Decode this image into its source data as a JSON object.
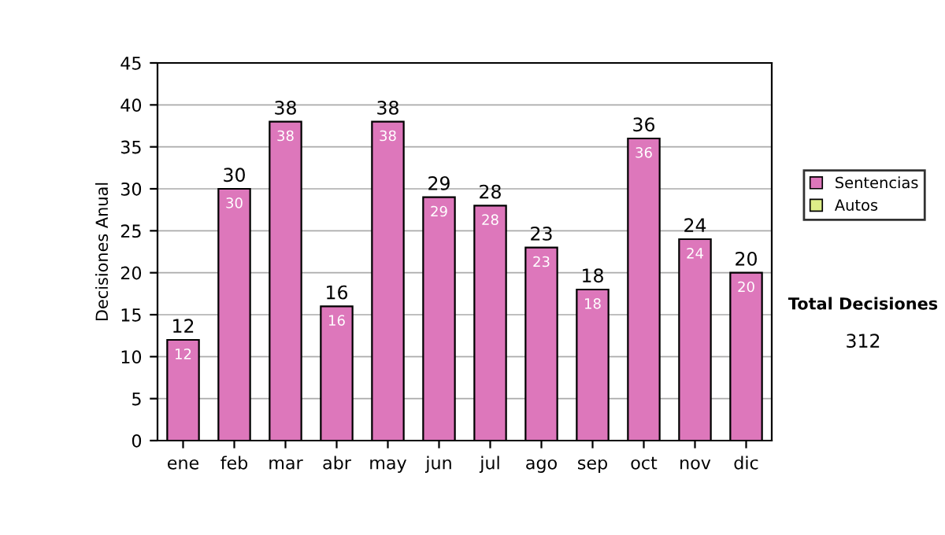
{
  "chart_data": {
    "type": "bar",
    "stacked": true,
    "categories": [
      "ene",
      "feb",
      "mar",
      "abr",
      "may",
      "jun",
      "jul",
      "ago",
      "sep",
      "oct",
      "nov",
      "dic"
    ],
    "series": [
      {
        "name": "Sentencias",
        "color": "#dd77bb",
        "values": [
          12,
          30,
          38,
          16,
          38,
          29,
          28,
          23,
          18,
          36,
          24,
          20
        ],
        "value_labels": [
          "12",
          "30",
          "38",
          "16",
          "38",
          "29",
          "28",
          "23",
          "18",
          "36",
          "24",
          "20"
        ]
      },
      {
        "name": "Autos",
        "color": "#ddee88",
        "values": [
          null,
          null,
          null,
          null,
          null,
          null,
          null,
          null,
          null,
          null,
          null,
          null
        ]
      }
    ],
    "totals": [
      "12",
      "30",
      "38",
      "16",
      "38",
      "29",
      "28",
      "23",
      "18",
      "36",
      "24",
      "20"
    ],
    "ylabel": "Decisiones Anual",
    "ylim": [
      0,
      45
    ],
    "yticks": [
      0,
      5,
      10,
      15,
      20,
      25,
      30,
      35,
      40,
      45
    ],
    "grid": "y",
    "legend": "right",
    "annotations": [
      "Total Decisiones",
      "312"
    ]
  }
}
